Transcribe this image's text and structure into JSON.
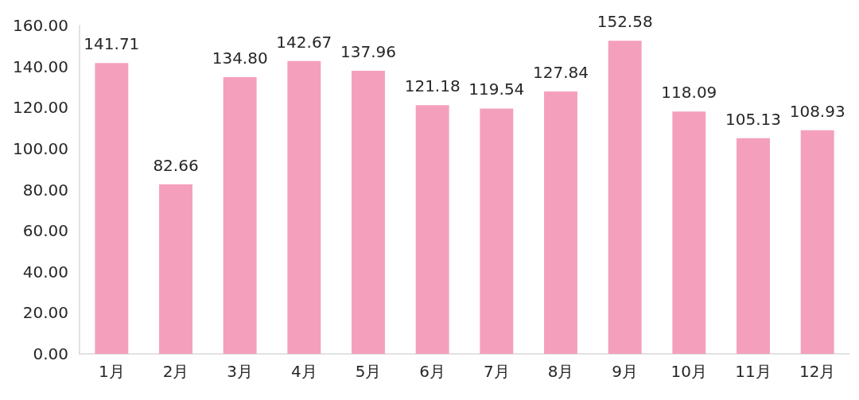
{
  "chart_data": {
    "type": "bar",
    "categories": [
      "1月",
      "2月",
      "3月",
      "4月",
      "5月",
      "6月",
      "7月",
      "8月",
      "9月",
      "10月",
      "11月",
      "12月"
    ],
    "values": [
      141.71,
      82.66,
      134.8,
      142.67,
      137.96,
      121.18,
      119.54,
      127.84,
      152.58,
      118.09,
      105.13,
      108.93
    ],
    "value_labels": [
      "141.71",
      "82.66",
      "134.80",
      "142.67",
      "137.96",
      "121.18",
      "119.54",
      "127.84",
      "152.58",
      "118.09",
      "105.13",
      "108.93"
    ],
    "color": "#f4a0bd",
    "ylim": [
      0,
      160
    ],
    "yticks": [
      {
        "value": 0,
        "label": "0.00"
      },
      {
        "value": 20,
        "label": "20.00"
      },
      {
        "value": 40,
        "label": "40.00"
      },
      {
        "value": 60,
        "label": "60.00"
      },
      {
        "value": 80,
        "label": "80.00"
      },
      {
        "value": 100,
        "label": "100.00"
      },
      {
        "value": 120,
        "label": "120.00"
      },
      {
        "value": 140,
        "label": "140.00"
      },
      {
        "value": 160,
        "label": "160.00"
      }
    ],
    "grid": false
  }
}
